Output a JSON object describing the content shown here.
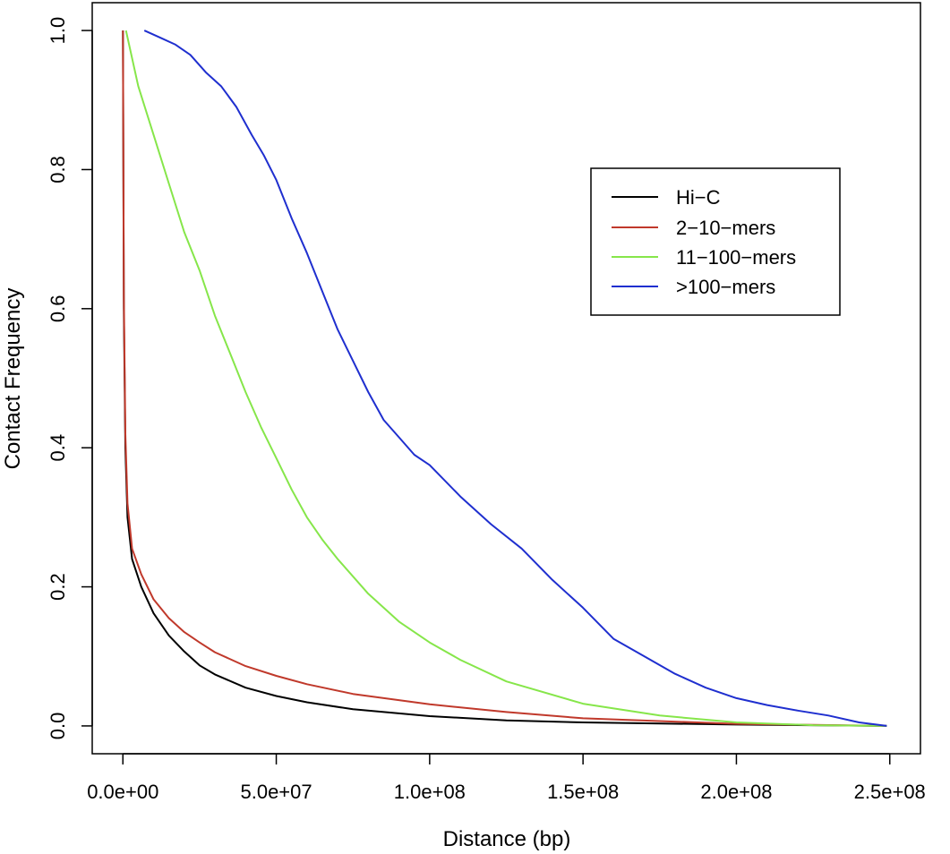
{
  "chart_data": {
    "type": "line",
    "xlabel": "Distance (bp)",
    "ylabel": "Contact Frequency",
    "xlim": [
      -10000000,
      260000000
    ],
    "ylim": [
      -0.04,
      1.04
    ],
    "x_ticks": [
      0,
      50000000,
      100000000,
      150000000,
      200000000,
      250000000
    ],
    "x_tick_labels": [
      "0.0e+00",
      "5.0e+07",
      "1.0e+08",
      "1.5e+08",
      "2.0e+08",
      "2.5e+08"
    ],
    "y_ticks": [
      0,
      0.2,
      0.4,
      0.6,
      0.8,
      1.0
    ],
    "y_tick_labels": [
      "0.0",
      "0.2",
      "0.4",
      "0.6",
      "0.8",
      "1.0"
    ],
    "grid": false,
    "legend_position": "top-right",
    "series": [
      {
        "name": "Hi−C",
        "color": "#000000",
        "points": [
          [
            0,
            1.0
          ],
          [
            300000,
            0.6
          ],
          [
            800000,
            0.4
          ],
          [
            1500000,
            0.3
          ],
          [
            3000000,
            0.24
          ],
          [
            6000000,
            0.2
          ],
          [
            10000000,
            0.162
          ],
          [
            15000000,
            0.13
          ],
          [
            20000000,
            0.107
          ],
          [
            25000000,
            0.087
          ],
          [
            30000000,
            0.074
          ],
          [
            40000000,
            0.055
          ],
          [
            50000000,
            0.043
          ],
          [
            60000000,
            0.034
          ],
          [
            75000000,
            0.024
          ],
          [
            100000000,
            0.014
          ],
          [
            125000000,
            0.008
          ],
          [
            150000000,
            0.005
          ],
          [
            200000000,
            0.002
          ],
          [
            249000000,
            0.0
          ]
        ]
      },
      {
        "name": "2−10−mers",
        "color": "#c0392b",
        "points": [
          [
            0,
            1.0
          ],
          [
            300000,
            0.62
          ],
          [
            800000,
            0.42
          ],
          [
            1500000,
            0.32
          ],
          [
            3000000,
            0.255
          ],
          [
            6000000,
            0.218
          ],
          [
            10000000,
            0.182
          ],
          [
            15000000,
            0.155
          ],
          [
            20000000,
            0.135
          ],
          [
            25000000,
            0.12
          ],
          [
            30000000,
            0.106
          ],
          [
            40000000,
            0.086
          ],
          [
            50000000,
            0.072
          ],
          [
            60000000,
            0.06
          ],
          [
            75000000,
            0.046
          ],
          [
            100000000,
            0.031
          ],
          [
            125000000,
            0.02
          ],
          [
            150000000,
            0.011
          ],
          [
            200000000,
            0.003
          ],
          [
            249000000,
            0.0
          ]
        ]
      },
      {
        "name": "11−100−mers",
        "color": "#86e64a",
        "points": [
          [
            1000000,
            1.0
          ],
          [
            5000000,
            0.92
          ],
          [
            10000000,
            0.85
          ],
          [
            15000000,
            0.78
          ],
          [
            20000000,
            0.71
          ],
          [
            25000000,
            0.655
          ],
          [
            30000000,
            0.59
          ],
          [
            35000000,
            0.535
          ],
          [
            40000000,
            0.48
          ],
          [
            45000000,
            0.43
          ],
          [
            50000000,
            0.385
          ],
          [
            55000000,
            0.34
          ],
          [
            60000000,
            0.3
          ],
          [
            65000000,
            0.268
          ],
          [
            70000000,
            0.24
          ],
          [
            80000000,
            0.19
          ],
          [
            90000000,
            0.15
          ],
          [
            100000000,
            0.12
          ],
          [
            110000000,
            0.095
          ],
          [
            125000000,
            0.064
          ],
          [
            150000000,
            0.032
          ],
          [
            175000000,
            0.015
          ],
          [
            200000000,
            0.005
          ],
          [
            225000000,
            0.001
          ],
          [
            249000000,
            0.0
          ]
        ]
      },
      {
        "name": ">100−mers",
        "color": "#1f2fcf",
        "points": [
          [
            7000000,
            1.0
          ],
          [
            12000000,
            0.99
          ],
          [
            17000000,
            0.98
          ],
          [
            22000000,
            0.965
          ],
          [
            27000000,
            0.94
          ],
          [
            32000000,
            0.92
          ],
          [
            37000000,
            0.89
          ],
          [
            42000000,
            0.85
          ],
          [
            46000000,
            0.82
          ],
          [
            50000000,
            0.785
          ],
          [
            55000000,
            0.73
          ],
          [
            60000000,
            0.68
          ],
          [
            65000000,
            0.625
          ],
          [
            70000000,
            0.57
          ],
          [
            75000000,
            0.525
          ],
          [
            80000000,
            0.48
          ],
          [
            85000000,
            0.44
          ],
          [
            90000000,
            0.415
          ],
          [
            95000000,
            0.39
          ],
          [
            100000000,
            0.375
          ],
          [
            110000000,
            0.33
          ],
          [
            120000000,
            0.29
          ],
          [
            130000000,
            0.255
          ],
          [
            140000000,
            0.21
          ],
          [
            150000000,
            0.17
          ],
          [
            160000000,
            0.125
          ],
          [
            170000000,
            0.1
          ],
          [
            180000000,
            0.075
          ],
          [
            190000000,
            0.055
          ],
          [
            200000000,
            0.04
          ],
          [
            210000000,
            0.03
          ],
          [
            220000000,
            0.022
          ],
          [
            230000000,
            0.015
          ],
          [
            240000000,
            0.005
          ],
          [
            249000000,
            0.0
          ]
        ]
      }
    ]
  }
}
